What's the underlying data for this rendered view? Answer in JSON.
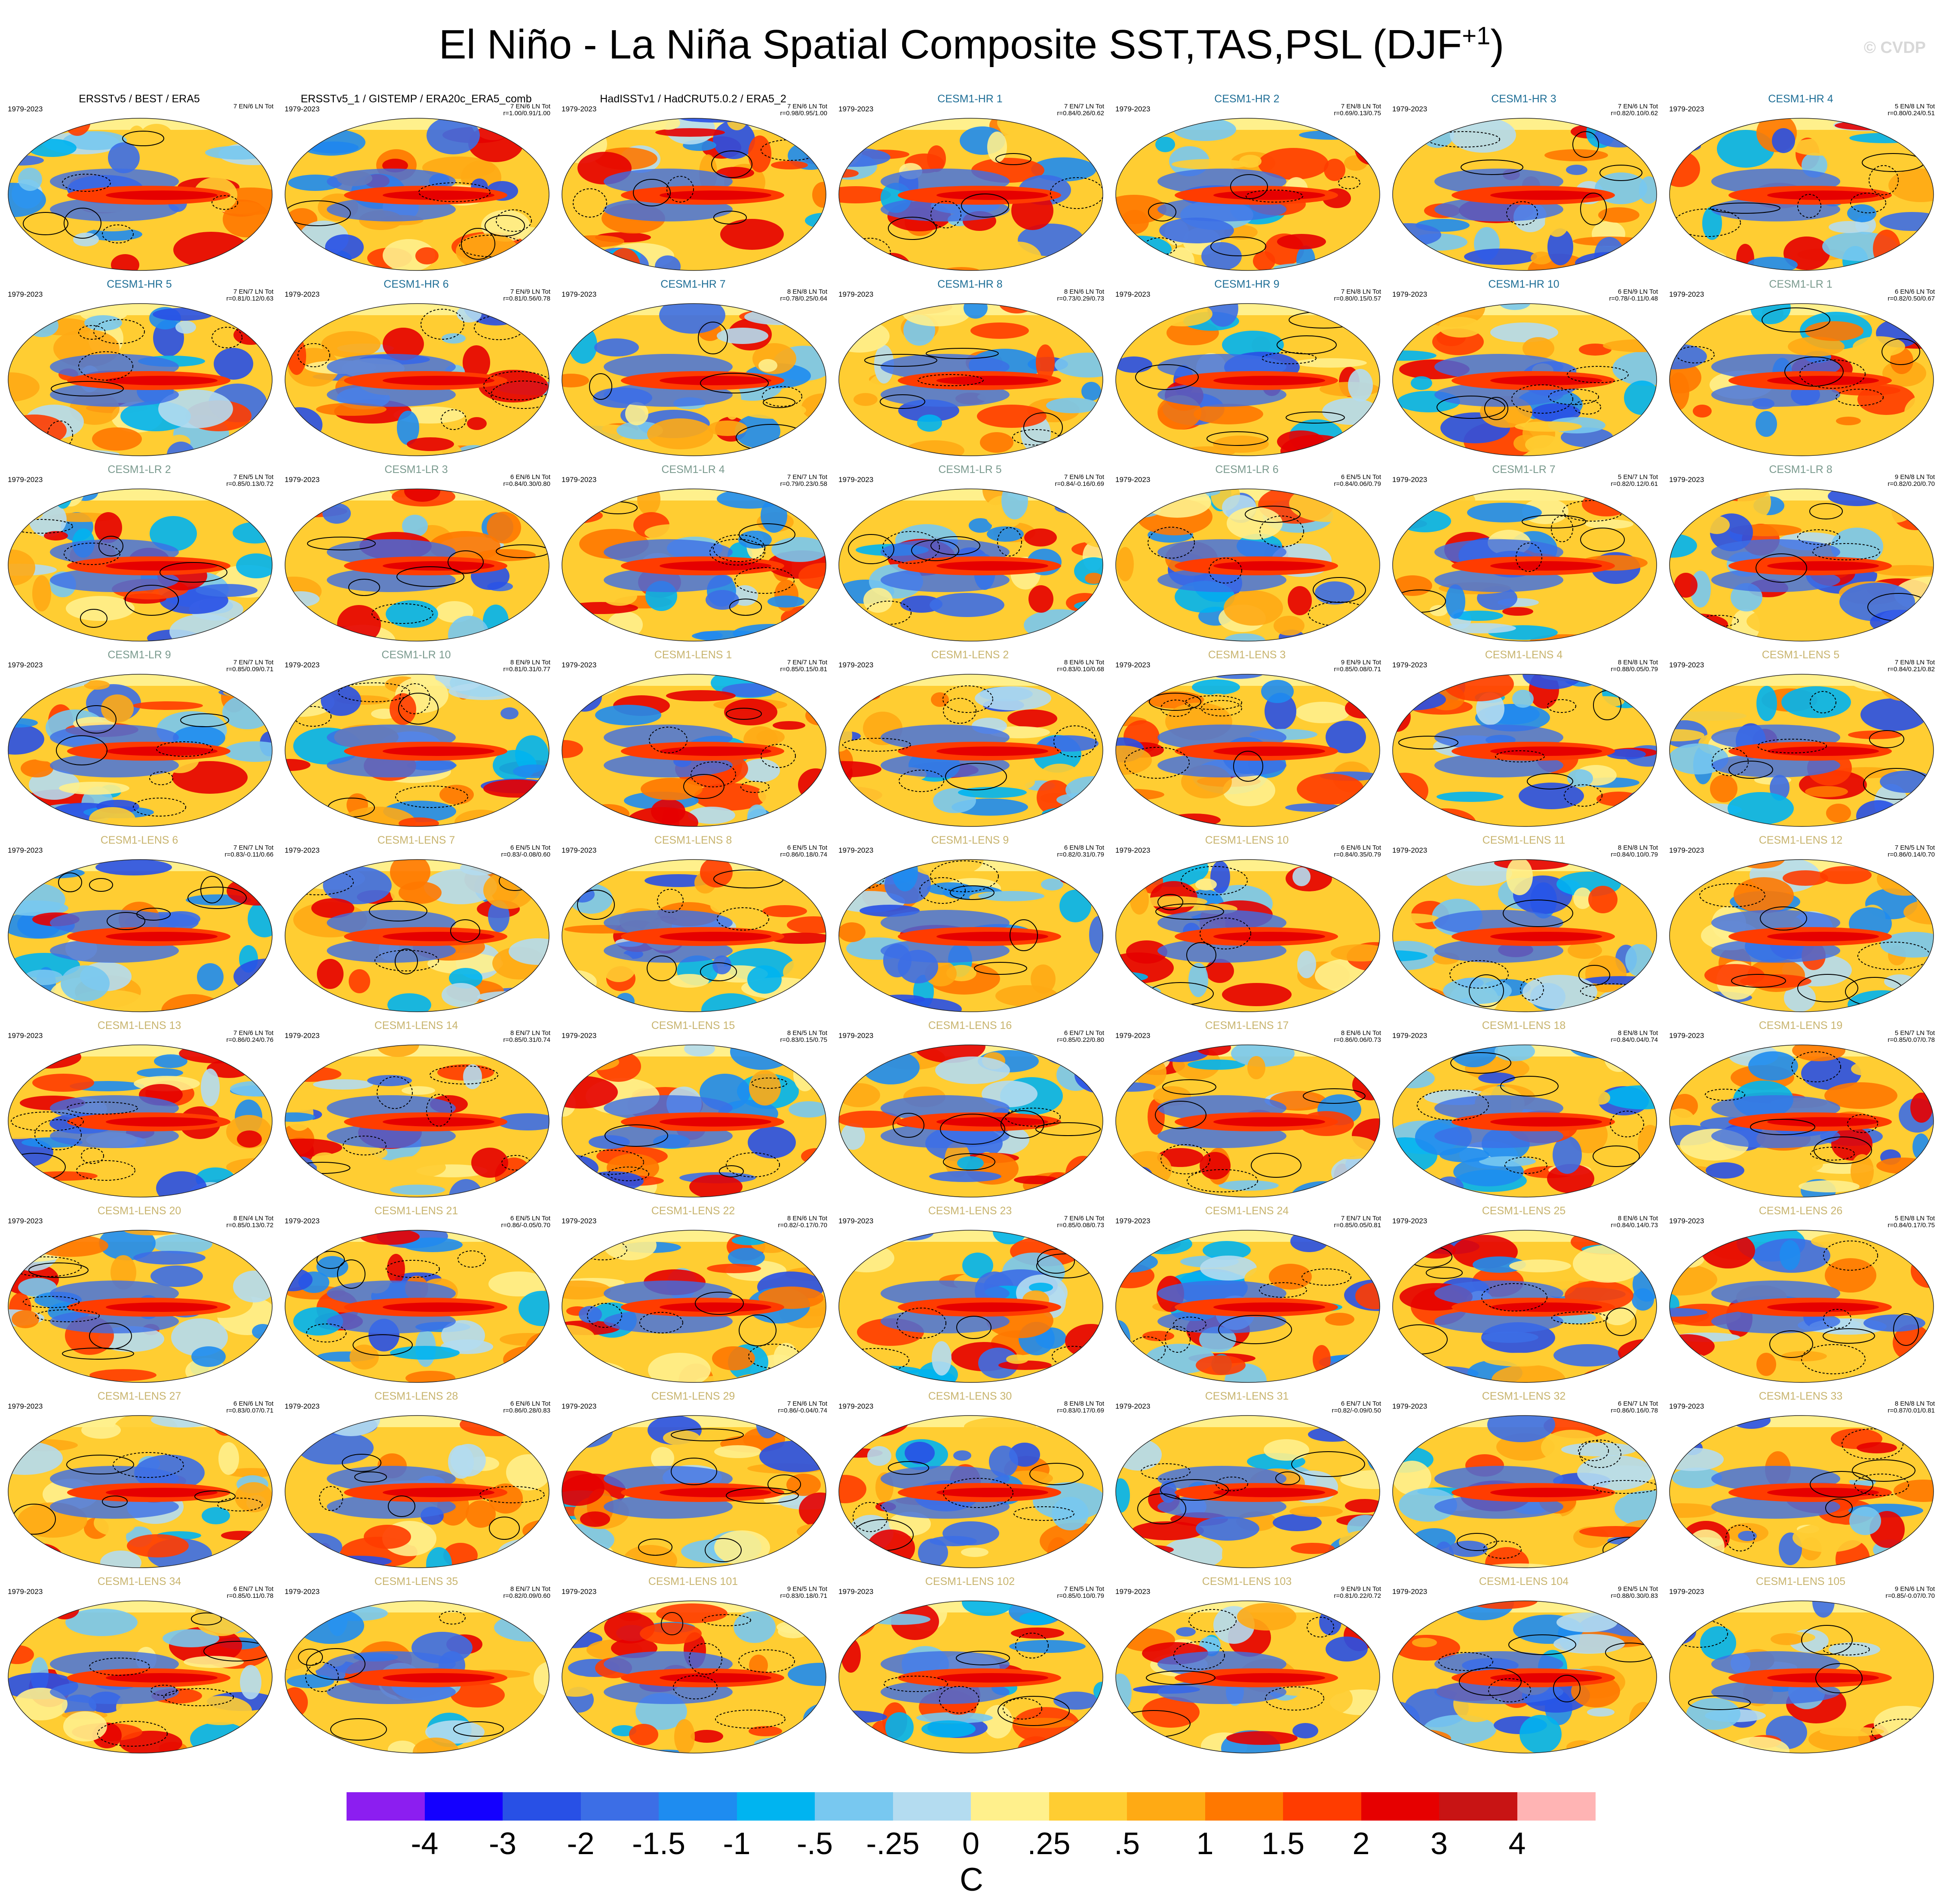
{
  "title_main": "El Niño - La Niña Spatial Composite SST,TAS,PSL (DJF",
  "title_sup": "+1",
  "title_end": ")",
  "watermark": "© CVDP",
  "period": "1979-2023",
  "panels": [
    {
      "title": "ERSSTv5 / BEST / ERA5",
      "color": "#000000",
      "stats": "7 EN/6 LN Tot",
      "corr": ""
    },
    {
      "title": "ERSSTv5_1 / GISTEMP / ERA20c_ERA5_comb",
      "color": "#000000",
      "stats": "7 EN/6 LN Tot",
      "corr": "r=1.00/0.91/1.00"
    },
    {
      "title": "HadISSTv1 / HadCRUT5.0.2 / ERA5_2",
      "color": "#000000",
      "stats": "7 EN/6 LN Tot",
      "corr": "r=0.98/0.95/1.00"
    },
    {
      "title": "CESM1-HR 1",
      "color": "#1e6e96",
      "stats": "7 EN/7 LN Tot",
      "corr": "r=0.84/0.26/0.62"
    },
    {
      "title": "CESM1-HR 2",
      "color": "#1e6e96",
      "stats": "7 EN/8 LN Tot",
      "corr": "r=0.69/0.13/0.75"
    },
    {
      "title": "CESM1-HR 3",
      "color": "#1e6e96",
      "stats": "7 EN/6 LN Tot",
      "corr": "r=0.82/0.10/0.62"
    },
    {
      "title": "CESM1-HR 4",
      "color": "#1e6e96",
      "stats": "5 EN/8 LN Tot",
      "corr": "r=0.80/0.24/0.51"
    },
    {
      "title": "CESM1-HR 5",
      "color": "#1e6e96",
      "stats": "7 EN/7 LN Tot",
      "corr": "r=0.81/0.12/0.63"
    },
    {
      "title": "CESM1-HR 6",
      "color": "#1e6e96",
      "stats": "7 EN/9 LN Tot",
      "corr": "r=0.81/0.56/0.78"
    },
    {
      "title": "CESM1-HR 7",
      "color": "#1e6e96",
      "stats": "8 EN/8 LN Tot",
      "corr": "r=0.78/0.25/0.64"
    },
    {
      "title": "CESM1-HR 8",
      "color": "#1e6e96",
      "stats": "8 EN/6 LN Tot",
      "corr": "r=0.73/0.29/0.73"
    },
    {
      "title": "CESM1-HR 9",
      "color": "#1e6e96",
      "stats": "7 EN/8 LN Tot",
      "corr": "r=0.80/0.15/0.57"
    },
    {
      "title": "CESM1-HR 10",
      "color": "#1e6e96",
      "stats": "6 EN/9 LN Tot",
      "corr": "r=0.78/-0.11/0.48"
    },
    {
      "title": "CESM1-LR 1",
      "color": "#7a9a8e",
      "stats": "6 EN/6 LN Tot",
      "corr": "r=0.82/0.50/0.67"
    },
    {
      "title": "CESM1-LR 2",
      "color": "#7a9a8e",
      "stats": "7 EN/5 LN Tot",
      "corr": "r=0.85/0.13/0.72"
    },
    {
      "title": "CESM1-LR 3",
      "color": "#7a9a8e",
      "stats": "6 EN/6 LN Tot",
      "corr": "r=0.84/0.30/0.80"
    },
    {
      "title": "CESM1-LR 4",
      "color": "#7a9a8e",
      "stats": "7 EN/7 LN Tot",
      "corr": "r=0.79/0.23/0.58"
    },
    {
      "title": "CESM1-LR 5",
      "color": "#7a9a8e",
      "stats": "7 EN/6 LN Tot",
      "corr": "r=0.84/-0.16/0.69"
    },
    {
      "title": "CESM1-LR 6",
      "color": "#7a9a8e",
      "stats": "6 EN/5 LN Tot",
      "corr": "r=0.84/0.06/0.79"
    },
    {
      "title": "CESM1-LR 7",
      "color": "#7a9a8e",
      "stats": "5 EN/7 LN Tot",
      "corr": "r=0.82/0.12/0.61"
    },
    {
      "title": "CESM1-LR 8",
      "color": "#7a9a8e",
      "stats": "9 EN/8 LN Tot",
      "corr": "r=0.82/0.20/0.70"
    },
    {
      "title": "CESM1-LR 9",
      "color": "#7a9a8e",
      "stats": "7 EN/7 LN Tot",
      "corr": "r=0.85/0.09/0.71"
    },
    {
      "title": "CESM1-LR 10",
      "color": "#7a9a8e",
      "stats": "8 EN/9 LN Tot",
      "corr": "r=0.81/0.31/0.77"
    },
    {
      "title": "CESM1-LENS 1",
      "color": "#c8b46e",
      "stats": "7 EN/7 LN Tot",
      "corr": "r=0.85/0.15/0.81"
    },
    {
      "title": "CESM1-LENS 2",
      "color": "#c8b46e",
      "stats": "8 EN/6 LN Tot",
      "corr": "r=0.83/0.10/0.68"
    },
    {
      "title": "CESM1-LENS 3",
      "color": "#c8b46e",
      "stats": "9 EN/9 LN Tot",
      "corr": "r=0.85/0.08/0.71"
    },
    {
      "title": "CESM1-LENS 4",
      "color": "#c8b46e",
      "stats": "8 EN/8 LN Tot",
      "corr": "r=0.88/0.05/0.79"
    },
    {
      "title": "CESM1-LENS 5",
      "color": "#c8b46e",
      "stats": "7 EN/8 LN Tot",
      "corr": "r=0.84/0.21/0.82"
    },
    {
      "title": "CESM1-LENS 6",
      "color": "#c8b46e",
      "stats": "7 EN/7 LN Tot",
      "corr": "r=0.83/-0.11/0.66"
    },
    {
      "title": "CESM1-LENS 7",
      "color": "#c8b46e",
      "stats": "6 EN/5 LN Tot",
      "corr": "r=0.83/-0.08/0.60"
    },
    {
      "title": "CESM1-LENS 8",
      "color": "#c8b46e",
      "stats": "6 EN/5 LN Tot",
      "corr": "r=0.86/0.18/0.74"
    },
    {
      "title": "CESM1-LENS 9",
      "color": "#c8b46e",
      "stats": "6 EN/8 LN Tot",
      "corr": "r=0.82/0.31/0.79"
    },
    {
      "title": "CESM1-LENS 10",
      "color": "#c8b46e",
      "stats": "6 EN/6 LN Tot",
      "corr": "r=0.84/0.35/0.79"
    },
    {
      "title": "CESM1-LENS 11",
      "color": "#c8b46e",
      "stats": "8 EN/8 LN Tot",
      "corr": "r=0.84/0.10/0.79"
    },
    {
      "title": "CESM1-LENS 12",
      "color": "#c8b46e",
      "stats": "7 EN/5 LN Tot",
      "corr": "r=0.86/0.14/0.70"
    },
    {
      "title": "CESM1-LENS 13",
      "color": "#c8b46e",
      "stats": "7 EN/6 LN Tot",
      "corr": "r=0.86/0.24/0.76"
    },
    {
      "title": "CESM1-LENS 14",
      "color": "#c8b46e",
      "stats": "8 EN/7 LN Tot",
      "corr": "r=0.85/0.31/0.74"
    },
    {
      "title": "CESM1-LENS 15",
      "color": "#c8b46e",
      "stats": "8 EN/5 LN Tot",
      "corr": "r=0.83/0.15/0.75"
    },
    {
      "title": "CESM1-LENS 16",
      "color": "#c8b46e",
      "stats": "6 EN/7 LN Tot",
      "corr": "r=0.85/0.22/0.80"
    },
    {
      "title": "CESM1-LENS 17",
      "color": "#c8b46e",
      "stats": "8 EN/6 LN Tot",
      "corr": "r=0.86/0.06/0.73"
    },
    {
      "title": "CESM1-LENS 18",
      "color": "#c8b46e",
      "stats": "8 EN/8 LN Tot",
      "corr": "r=0.84/0.04/0.74"
    },
    {
      "title": "CESM1-LENS 19",
      "color": "#c8b46e",
      "stats": "5 EN/7 LN Tot",
      "corr": "r=0.85/0.07/0.78"
    },
    {
      "title": "CESM1-LENS 20",
      "color": "#c8b46e",
      "stats": "8 EN/4 LN Tot",
      "corr": "r=0.85/0.13/0.72"
    },
    {
      "title": "CESM1-LENS 21",
      "color": "#c8b46e",
      "stats": "6 EN/5 LN Tot",
      "corr": "r=0.86/-0.05/0.70"
    },
    {
      "title": "CESM1-LENS 22",
      "color": "#c8b46e",
      "stats": "8 EN/6 LN Tot",
      "corr": "r=0.82/-0.17/0.70"
    },
    {
      "title": "CESM1-LENS 23",
      "color": "#c8b46e",
      "stats": "7 EN/6 LN Tot",
      "corr": "r=0.85/0.08/0.73"
    },
    {
      "title": "CESM1-LENS 24",
      "color": "#c8b46e",
      "stats": "7 EN/7 LN Tot",
      "corr": "r=0.85/0.05/0.81"
    },
    {
      "title": "CESM1-LENS 25",
      "color": "#c8b46e",
      "stats": "8 EN/6 LN Tot",
      "corr": "r=0.84/0.14/0.73"
    },
    {
      "title": "CESM1-LENS 26",
      "color": "#c8b46e",
      "stats": "5 EN/8 LN Tot",
      "corr": "r=0.84/0.17/0.75"
    },
    {
      "title": "CESM1-LENS 27",
      "color": "#c8b46e",
      "stats": "6 EN/6 LN Tot",
      "corr": "r=0.83/0.07/0.71"
    },
    {
      "title": "CESM1-LENS 28",
      "color": "#c8b46e",
      "stats": "6 EN/6 LN Tot",
      "corr": "r=0.86/0.28/0.83"
    },
    {
      "title": "CESM1-LENS 29",
      "color": "#c8b46e",
      "stats": "7 EN/6 LN Tot",
      "corr": "r=0.86/-0.04/0.74"
    },
    {
      "title": "CESM1-LENS 30",
      "color": "#c8b46e",
      "stats": "8 EN/8 LN Tot",
      "corr": "r=0.83/0.17/0.69"
    },
    {
      "title": "CESM1-LENS 31",
      "color": "#c8b46e",
      "stats": "6 EN/7 LN Tot",
      "corr": "r=0.82/-0.09/0.50"
    },
    {
      "title": "CESM1-LENS 32",
      "color": "#c8b46e",
      "stats": "6 EN/7 LN Tot",
      "corr": "r=0.86/0.16/0.78"
    },
    {
      "title": "CESM1-LENS 33",
      "color": "#c8b46e",
      "stats": "8 EN/8 LN Tot",
      "corr": "r=0.87/0.01/0.81"
    },
    {
      "title": "CESM1-LENS 34",
      "color": "#c8b46e",
      "stats": "6 EN/7 LN Tot",
      "corr": "r=0.85/0.11/0.78"
    },
    {
      "title": "CESM1-LENS 35",
      "color": "#c8b46e",
      "stats": "8 EN/7 LN Tot",
      "corr": "r=0.82/0.09/0.60"
    },
    {
      "title": "CESM1-LENS 101",
      "color": "#c8b46e",
      "stats": "9 EN/5 LN Tot",
      "corr": "r=0.83/0.18/0.71"
    },
    {
      "title": "CESM1-LENS 102",
      "color": "#c8b46e",
      "stats": "7 EN/5 LN Tot",
      "corr": "r=0.85/0.10/0.79"
    },
    {
      "title": "CESM1-LENS 103",
      "color": "#c8b46e",
      "stats": "9 EN/9 LN Tot",
      "corr": "r=0.81/0.22/0.72"
    },
    {
      "title": "CESM1-LENS 104",
      "color": "#c8b46e",
      "stats": "9 EN/5 LN Tot",
      "corr": "r=0.88/0.30/0.83"
    },
    {
      "title": "CESM1-LENS 105",
      "color": "#c8b46e",
      "stats": "9 EN/6 LN Tot",
      "corr": "r=0.85/-0.07/0.70"
    }
  ],
  "colorbar": {
    "colors": [
      "#8c1ef0",
      "#1400ff",
      "#2850e6",
      "#3c6ee6",
      "#1e8cf0",
      "#00b4f0",
      "#78c8f0",
      "#b4dcf0",
      "#fff08c",
      "#ffcd32",
      "#ffaa14",
      "#ff7800",
      "#ff3c00",
      "#e60000",
      "#c81414",
      "#ffb4b4"
    ],
    "labels": [
      "-4",
      "-3",
      "-2",
      "-1.5",
      "-1",
      "-.5",
      "-.25",
      "0",
      ".25",
      ".5",
      "1",
      "1.5",
      "2",
      "3",
      "4"
    ],
    "unit": "C"
  }
}
